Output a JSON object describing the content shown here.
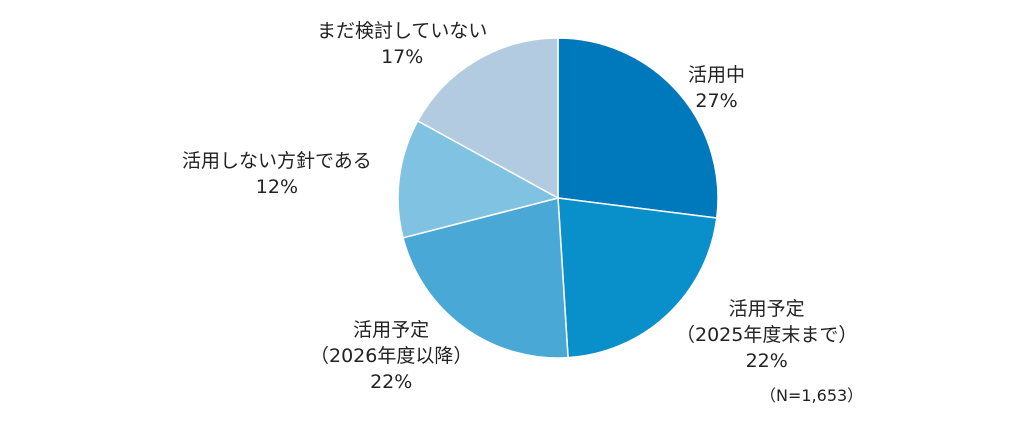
{
  "chart_data": {
    "type": "pie",
    "note": "（N=1,653）",
    "slices": [
      {
        "name": "活用中",
        "lines": [
          "活用中"
        ],
        "value": 27,
        "label": "27%",
        "color": "#0078bc"
      },
      {
        "name": "活用予定（2025年度末まで）",
        "lines": [
          "活用予定",
          "（2025年度末まで）"
        ],
        "value": 22,
        "label": "22%",
        "color": "#0990cb"
      },
      {
        "name": "活用予定（2026年度以降）",
        "lines": [
          "活用予定",
          "（2026年度以降）"
        ],
        "value": 22,
        "label": "22%",
        "color": "#4aa8d6"
      },
      {
        "name": "活用しない方針である",
        "lines": [
          "活用しない方針である"
        ],
        "value": 12,
        "label": "12%",
        "color": "#7fc2e2"
      },
      {
        "name": "まだ検討していない",
        "lines": [
          "まだ検討していない"
        ],
        "value": 17,
        "label": "17%",
        "color": "#b2cbe0"
      }
    ]
  }
}
